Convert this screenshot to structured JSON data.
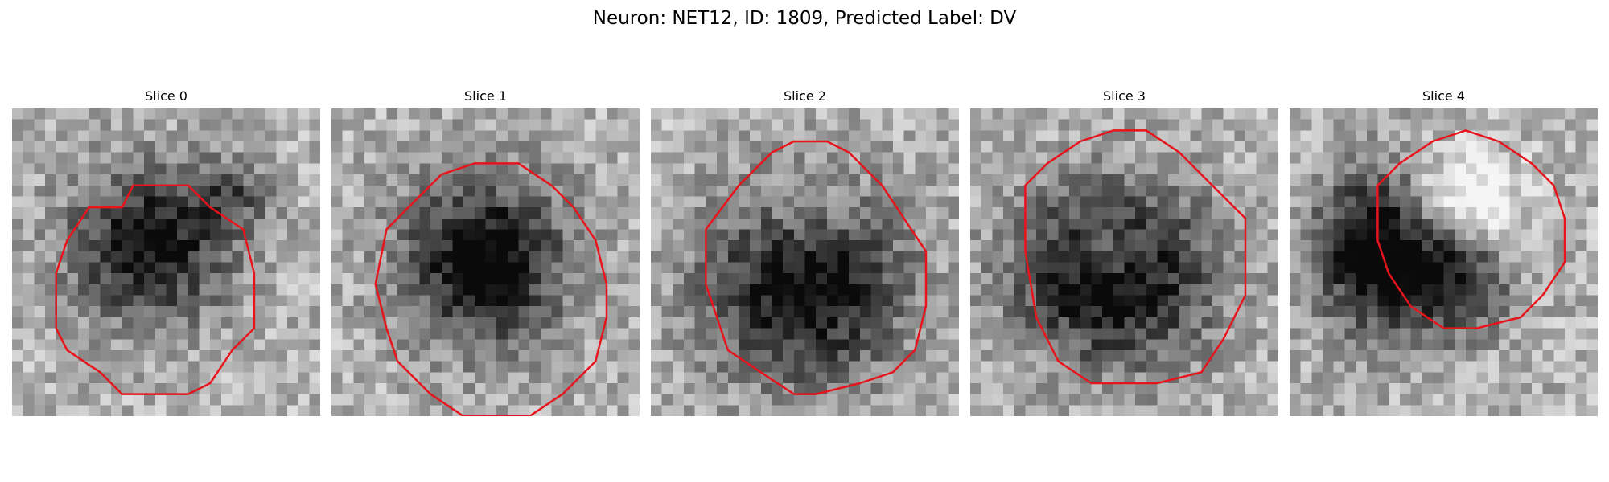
{
  "figure": {
    "title": "Neuron: NET12, ID: 1809, Predicted Label: DV",
    "outline_color": "#e8141c",
    "image_colormap": "grayscale",
    "panels": [
      {
        "title": "Slice 0"
      },
      {
        "title": "Slice 1"
      },
      {
        "title": "Slice 2"
      },
      {
        "title": "Slice 3"
      },
      {
        "title": "Slice 4"
      }
    ]
  }
}
